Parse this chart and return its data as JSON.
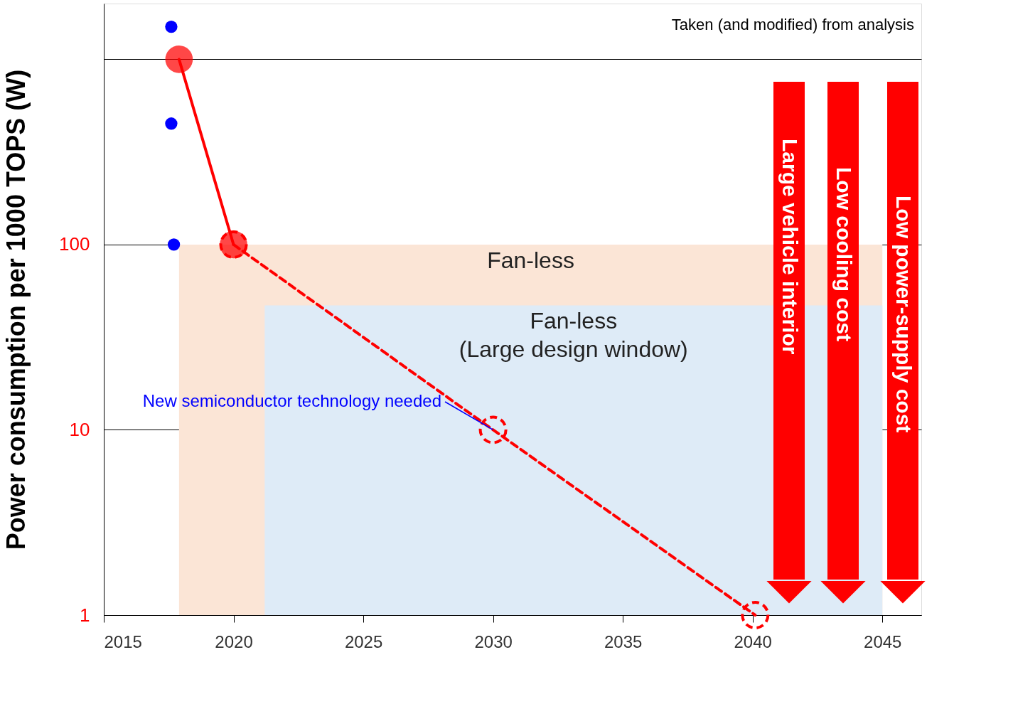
{
  "chart_data": {
    "type": "line",
    "ylabel": "Power consumption per 1000 TOPS (W)",
    "log": "y",
    "xlim": [
      2015,
      2046.5
    ],
    "xticks": [
      2015,
      2020,
      2025,
      2030,
      2035,
      2040,
      2045
    ],
    "ylim": [
      1,
      2000
    ],
    "yticks": [
      1,
      10,
      100,
      {
        "value": 1000,
        "label": null
      }
    ],
    "grid": "y",
    "legend": false,
    "marker": "circle",
    "series": [
      {
        "name": "Fan-less",
        "type": "area",
        "marker": "none",
        "color": "#fbe5d6",
        "x": [
          2017.9,
          2045
        ],
        "values": [
          100,
          100
        ]
      },
      {
        "name": "Fan-less\n(Large design window)",
        "type": "area",
        "marker": "none",
        "color": "#deebf7",
        "x": [
          2021.2,
          2045
        ],
        "values": [
          47,
          47
        ]
      },
      {
        "color": "#ff0000",
        "line_style": "solid",
        "x": [
          2017.9,
          2020
        ],
        "values": [
          1000,
          100
        ]
      },
      {
        "color": "#ff0000",
        "line_style": "dashed",
        "x": [
          2020,
          2030,
          2040.1
        ],
        "values": [
          100,
          10,
          1
        ]
      },
      {
        "type": "scatter",
        "color": "#0000ff",
        "x": [
          2017.6,
          2017.6,
          2017.7
        ],
        "values": [
          1500,
          450,
          100
        ]
      }
    ],
    "annotations": [
      {
        "text": "New semiconductor technology needed",
        "x": 2030,
        "y": 10
      },
      "Large vehicle interior",
      "Low cooling cost",
      "Low power-supply cost",
      "Taken (and modified) from analysis"
    ]
  }
}
